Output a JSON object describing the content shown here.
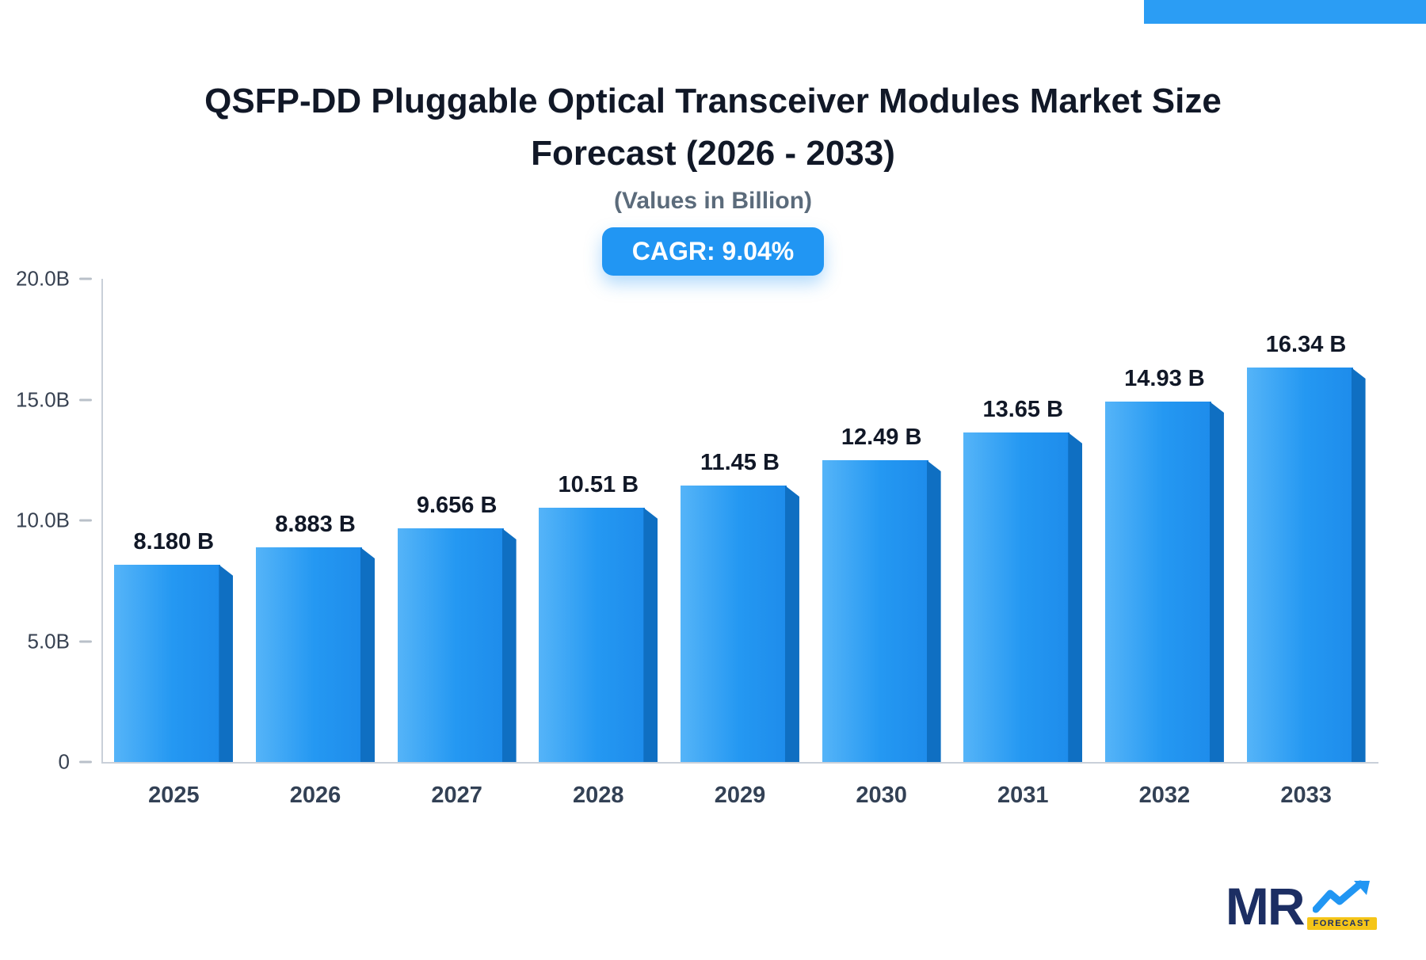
{
  "title": "QSFP-DD Pluggable Optical Transceiver Modules Market Size Forecast (2026 - 2033)",
  "subtitle": "(Values in Billion)",
  "cagr": "CAGR: 9.04%",
  "chart_data": {
    "type": "bar",
    "title": "QSFP-DD Pluggable Optical Transceiver Modules Market Size Forecast (2026 - 2033)",
    "subtitle": "(Values in Billion)",
    "categories": [
      "2025",
      "2026",
      "2027",
      "2028",
      "2029",
      "2030",
      "2031",
      "2032",
      "2033"
    ],
    "values": [
      8.18,
      8.883,
      9.656,
      10.51,
      11.45,
      12.49,
      13.65,
      14.93,
      16.34
    ],
    "value_labels": [
      "8.180 B",
      "8.883 B",
      "9.656 B",
      "10.51 B",
      "11.45 B",
      "12.49 B",
      "13.65 B",
      "14.93 B",
      "16.34 B"
    ],
    "xlabel": "",
    "ylabel": "",
    "ylim": [
      0,
      20
    ],
    "yticks": [
      "20.0B",
      "15.0B",
      "10.0B",
      "5.0B",
      "0"
    ],
    "grid": false,
    "legend": false,
    "cagr_percent": 9.04,
    "bar_color": "#2498f2",
    "bar_side_color": "#0f6fc2",
    "badge_color": "#2196f3"
  },
  "logo": {
    "text": "MR",
    "sub": "FORECAST",
    "arrow_icon": "trend-up-arrow-icon"
  },
  "colors": {
    "accent_blue": "#2196f3",
    "title_text": "#111827",
    "subtitle_text": "#5b6b7b",
    "axis_gray": "#c9d0d9",
    "logo_navy": "#1c2e63",
    "logo_yellow": "#f5c518"
  }
}
